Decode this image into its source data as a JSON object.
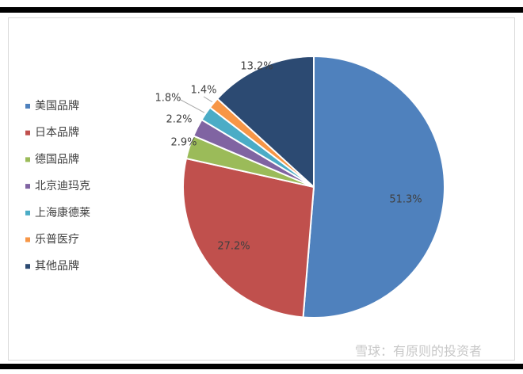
{
  "chart_data": {
    "type": "pie",
    "categories": [
      "美国品牌",
      "日本品牌",
      "德国品牌",
      "北京迪玛克",
      "上海康德莱",
      "乐普医疗",
      "其他品牌"
    ],
    "values": [
      51.3,
      27.2,
      2.9,
      2.2,
      1.8,
      1.4,
      13.2
    ],
    "value_labels": [
      "51.3%",
      "27.2%",
      "2.9%",
      "2.2%",
      "1.8%",
      "1.4%",
      "13.2%"
    ],
    "colors": [
      "#4f81bd",
      "#c0504d",
      "#9bbb59",
      "#8064a2",
      "#4bacc6",
      "#f79646",
      "#2c4a72"
    ],
    "legend": "left",
    "watermark": "雪球：有原则的投资者"
  }
}
